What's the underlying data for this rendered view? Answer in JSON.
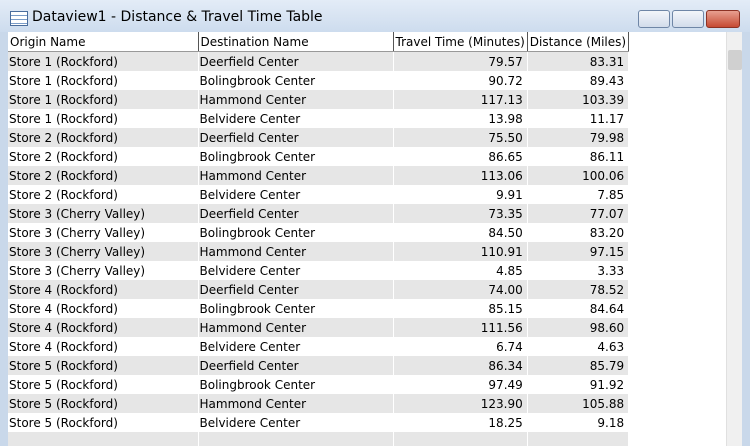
{
  "window": {
    "title": "Dataview1 - Distance & Travel Time Table"
  },
  "table": {
    "columns": [
      "Origin Name",
      "Destination Name",
      "Travel Time (Minutes)",
      "Distance (Miles)"
    ],
    "rows": [
      [
        "Store 1 (Rockford)",
        "Deerfield Center",
        "79.57",
        "83.31"
      ],
      [
        "Store 1 (Rockford)",
        "Bolingbrook Center",
        "90.72",
        "89.43"
      ],
      [
        "Store 1 (Rockford)",
        "Hammond Center",
        "117.13",
        "103.39"
      ],
      [
        "Store 1 (Rockford)",
        "Belvidere Center",
        "13.98",
        "11.17"
      ],
      [
        "Store 2 (Rockford)",
        "Deerfield Center",
        "75.50",
        "79.98"
      ],
      [
        "Store 2 (Rockford)",
        "Bolingbrook Center",
        "86.65",
        "86.11"
      ],
      [
        "Store 2 (Rockford)",
        "Hammond Center",
        "113.06",
        "100.06"
      ],
      [
        "Store 2 (Rockford)",
        "Belvidere Center",
        "9.91",
        "7.85"
      ],
      [
        "Store 3 (Cherry Valley)",
        "Deerfield Center",
        "73.35",
        "77.07"
      ],
      [
        "Store 3 (Cherry Valley)",
        "Bolingbrook Center",
        "84.50",
        "83.20"
      ],
      [
        "Store 3 (Cherry Valley)",
        "Hammond Center",
        "110.91",
        "97.15"
      ],
      [
        "Store 3 (Cherry Valley)",
        "Belvidere Center",
        "4.85",
        "3.33"
      ],
      [
        "Store 4 (Rockford)",
        "Deerfield Center",
        "74.00",
        "78.52"
      ],
      [
        "Store 4 (Rockford)",
        "Bolingbrook Center",
        "85.15",
        "84.64"
      ],
      [
        "Store 4 (Rockford)",
        "Hammond Center",
        "111.56",
        "98.60"
      ],
      [
        "Store 4 (Rockford)",
        "Belvidere Center",
        "6.74",
        "4.63"
      ],
      [
        "Store 5 (Rockford)",
        "Deerfield Center",
        "86.34",
        "85.79"
      ],
      [
        "Store 5 (Rockford)",
        "Bolingbrook Center",
        "97.49",
        "91.92"
      ],
      [
        "Store 5 (Rockford)",
        "Hammond Center",
        "123.90",
        "105.88"
      ],
      [
        "Store 5 (Rockford)",
        "Belvidere Center",
        "18.25",
        "9.18"
      ]
    ]
  }
}
